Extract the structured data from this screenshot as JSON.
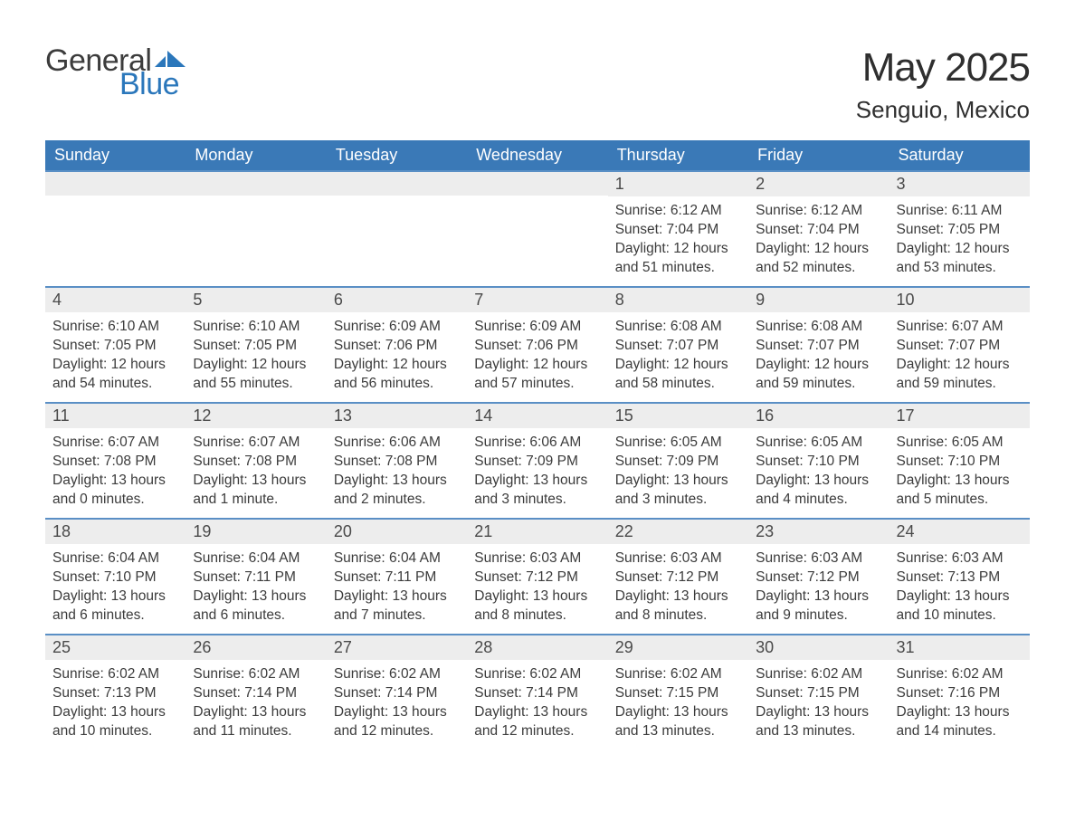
{
  "logo": {
    "text1": "General",
    "text2": "Blue",
    "mark_color": "#2b77bb"
  },
  "title": {
    "month": "May 2025",
    "location": "Senguio, Mexico"
  },
  "calendar": {
    "type": "table",
    "header_bg": "#3a79b7",
    "header_fg": "#ffffff",
    "daynum_bg": "#ededed",
    "daynum_border": "#5a8fc5",
    "text_color": "#3b3b3b",
    "columns": [
      "Sunday",
      "Monday",
      "Tuesday",
      "Wednesday",
      "Thursday",
      "Friday",
      "Saturday"
    ],
    "weeks": [
      [
        null,
        null,
        null,
        null,
        {
          "n": "1",
          "sunrise": "6:12 AM",
          "sunset": "7:04 PM",
          "daylight": "12 hours and 51 minutes."
        },
        {
          "n": "2",
          "sunrise": "6:12 AM",
          "sunset": "7:04 PM",
          "daylight": "12 hours and 52 minutes."
        },
        {
          "n": "3",
          "sunrise": "6:11 AM",
          "sunset": "7:05 PM",
          "daylight": "12 hours and 53 minutes."
        }
      ],
      [
        {
          "n": "4",
          "sunrise": "6:10 AM",
          "sunset": "7:05 PM",
          "daylight": "12 hours and 54 minutes."
        },
        {
          "n": "5",
          "sunrise": "6:10 AM",
          "sunset": "7:05 PM",
          "daylight": "12 hours and 55 minutes."
        },
        {
          "n": "6",
          "sunrise": "6:09 AM",
          "sunset": "7:06 PM",
          "daylight": "12 hours and 56 minutes."
        },
        {
          "n": "7",
          "sunrise": "6:09 AM",
          "sunset": "7:06 PM",
          "daylight": "12 hours and 57 minutes."
        },
        {
          "n": "8",
          "sunrise": "6:08 AM",
          "sunset": "7:07 PM",
          "daylight": "12 hours and 58 minutes."
        },
        {
          "n": "9",
          "sunrise": "6:08 AM",
          "sunset": "7:07 PM",
          "daylight": "12 hours and 59 minutes."
        },
        {
          "n": "10",
          "sunrise": "6:07 AM",
          "sunset": "7:07 PM",
          "daylight": "12 hours and 59 minutes."
        }
      ],
      [
        {
          "n": "11",
          "sunrise": "6:07 AM",
          "sunset": "7:08 PM",
          "daylight": "13 hours and 0 minutes."
        },
        {
          "n": "12",
          "sunrise": "6:07 AM",
          "sunset": "7:08 PM",
          "daylight": "13 hours and 1 minute."
        },
        {
          "n": "13",
          "sunrise": "6:06 AM",
          "sunset": "7:08 PM",
          "daylight": "13 hours and 2 minutes."
        },
        {
          "n": "14",
          "sunrise": "6:06 AM",
          "sunset": "7:09 PM",
          "daylight": "13 hours and 3 minutes."
        },
        {
          "n": "15",
          "sunrise": "6:05 AM",
          "sunset": "7:09 PM",
          "daylight": "13 hours and 3 minutes."
        },
        {
          "n": "16",
          "sunrise": "6:05 AM",
          "sunset": "7:10 PM",
          "daylight": "13 hours and 4 minutes."
        },
        {
          "n": "17",
          "sunrise": "6:05 AM",
          "sunset": "7:10 PM",
          "daylight": "13 hours and 5 minutes."
        }
      ],
      [
        {
          "n": "18",
          "sunrise": "6:04 AM",
          "sunset": "7:10 PM",
          "daylight": "13 hours and 6 minutes."
        },
        {
          "n": "19",
          "sunrise": "6:04 AM",
          "sunset": "7:11 PM",
          "daylight": "13 hours and 6 minutes."
        },
        {
          "n": "20",
          "sunrise": "6:04 AM",
          "sunset": "7:11 PM",
          "daylight": "13 hours and 7 minutes."
        },
        {
          "n": "21",
          "sunrise": "6:03 AM",
          "sunset": "7:12 PM",
          "daylight": "13 hours and 8 minutes."
        },
        {
          "n": "22",
          "sunrise": "6:03 AM",
          "sunset": "7:12 PM",
          "daylight": "13 hours and 8 minutes."
        },
        {
          "n": "23",
          "sunrise": "6:03 AM",
          "sunset": "7:12 PM",
          "daylight": "13 hours and 9 minutes."
        },
        {
          "n": "24",
          "sunrise": "6:03 AM",
          "sunset": "7:13 PM",
          "daylight": "13 hours and 10 minutes."
        }
      ],
      [
        {
          "n": "25",
          "sunrise": "6:02 AM",
          "sunset": "7:13 PM",
          "daylight": "13 hours and 10 minutes."
        },
        {
          "n": "26",
          "sunrise": "6:02 AM",
          "sunset": "7:14 PM",
          "daylight": "13 hours and 11 minutes."
        },
        {
          "n": "27",
          "sunrise": "6:02 AM",
          "sunset": "7:14 PM",
          "daylight": "13 hours and 12 minutes."
        },
        {
          "n": "28",
          "sunrise": "6:02 AM",
          "sunset": "7:14 PM",
          "daylight": "13 hours and 12 minutes."
        },
        {
          "n": "29",
          "sunrise": "6:02 AM",
          "sunset": "7:15 PM",
          "daylight": "13 hours and 13 minutes."
        },
        {
          "n": "30",
          "sunrise": "6:02 AM",
          "sunset": "7:15 PM",
          "daylight": "13 hours and 13 minutes."
        },
        {
          "n": "31",
          "sunrise": "6:02 AM",
          "sunset": "7:16 PM",
          "daylight": "13 hours and 14 minutes."
        }
      ]
    ],
    "labels": {
      "sunrise": "Sunrise:",
      "sunset": "Sunset:",
      "daylight": "Daylight:"
    }
  }
}
